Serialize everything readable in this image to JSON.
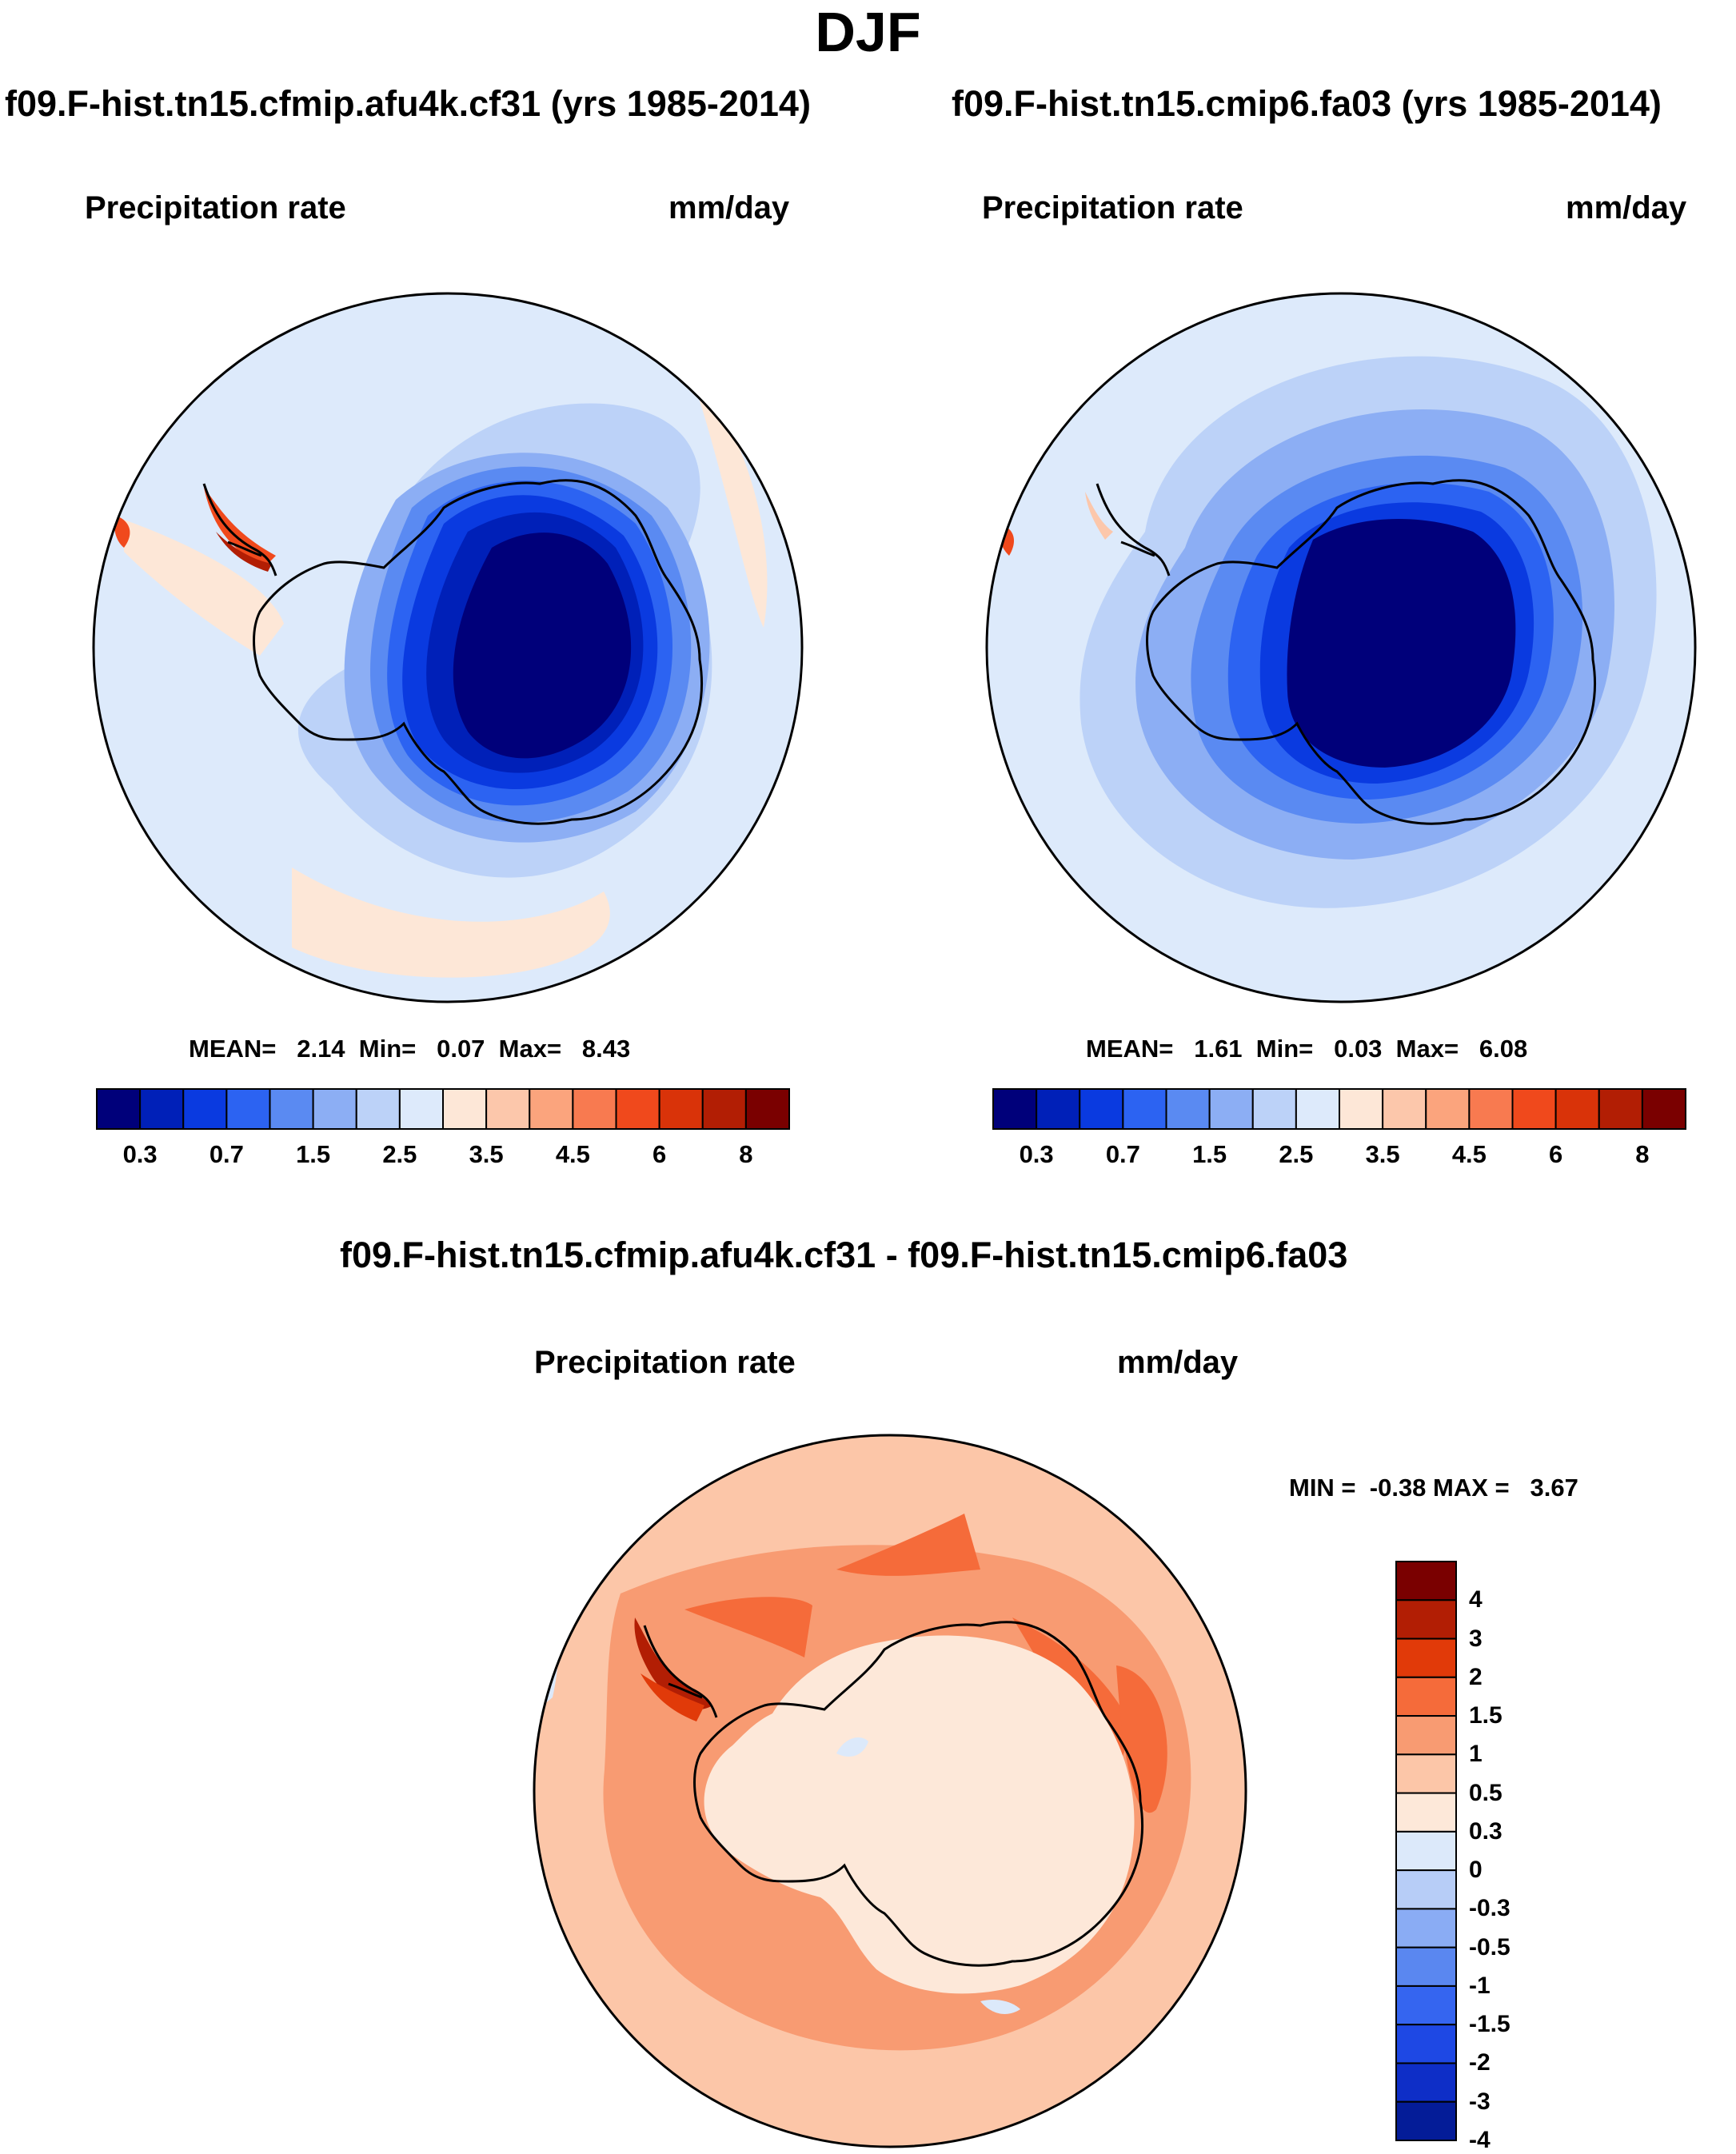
{
  "figure": {
    "title": "DJF",
    "variable": "Precipitation rate",
    "units": "mm/day"
  },
  "panels": [
    {
      "case": "f09.F-hist.tn15.cfmip.afu4k.cf31 (yrs 1985-2014)",
      "stats": "MEAN=   2.14  Min=   0.07  Max=   8.43"
    },
    {
      "case": "f09.F-hist.tn15.cmip6.fa03 (yrs 1985-2014)",
      "stats": "MEAN=   1.61  Min=   0.03  Max=   6.08"
    }
  ],
  "diff_panel": {
    "case": "f09.F-hist.tn15.cfmip.afu4k.cf31 - f09.F-hist.tn15.cmip6.fa03",
    "stats": "MIN =  -0.38 MAX =   3.67"
  },
  "colorbar": {
    "colors": [
      "#00007a",
      "#0020b8",
      "#0a3ae0",
      "#2c63f2",
      "#5a8af2",
      "#8caef4",
      "#bcd2f8",
      "#ddeafb",
      "#fde7d7",
      "#fcc7ab",
      "#fba47d",
      "#f87a50",
      "#f0491c",
      "#d93309",
      "#b21e04",
      "#7a0000"
    ],
    "tick_labels": [
      "0.3",
      "0.7",
      "1.5",
      "2.5",
      "3.5",
      "4.5",
      "6",
      "8"
    ]
  },
  "diff_colorbar": {
    "colors": [
      "#7a0000",
      "#b21e04",
      "#e13a09",
      "#f56b3a",
      "#f89b72",
      "#fcc6a8",
      "#fde8d9",
      "#dce9fa",
      "#b7cdf7",
      "#8aacf4",
      "#5a87f0",
      "#3565f0",
      "#1e48e4",
      "#0e2ec7",
      "#041c98"
    ],
    "tick_labels": [
      "4",
      "3",
      "2",
      "1.5",
      "1",
      "0.5",
      "0.3",
      "0",
      "-0.3",
      "-0.5",
      "-1",
      "-1.5",
      "-2",
      "-3",
      "-4"
    ]
  },
  "maps": {
    "coastline_color": "#000000",
    "polar_view": "south pole stereographic",
    "hemisphere": "Southern Hemisphere"
  }
}
